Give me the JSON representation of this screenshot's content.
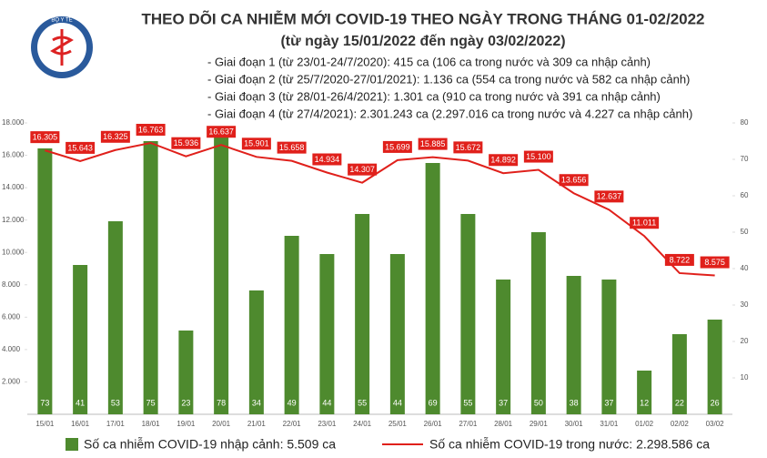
{
  "logo_text": "BỘ Y TẾ",
  "chart_data": {
    "type": "bar-line",
    "title": "THEO DÕI CA NHIỄM MỚI COVID-19 THEO NGÀY TRONG THÁNG 01-02/2022",
    "subtitle": "(từ ngày 15/01/2022 đến ngày 03/02/2022)",
    "annotations": [
      "- Giai đoạn 1 (từ 23/01-24/7/2020): 415 ca (106 ca trong nước và 309 ca nhập cảnh)",
      "- Giai đoạn 2 (từ 25/7/2020-27/01/2021): 1.136 ca (554 ca trong nước và 582 ca nhập cảnh)",
      "- Giai đoạn 3 (từ 28/01-26/4/2021): 1.301 ca (910 ca trong nước và 391 ca nhập cảnh)",
      "- Giai đoạn 4 (từ 27/4/2021): 2.301.243 ca (2.297.016 ca trong nước và 4.227 ca nhập cảnh)"
    ],
    "categories": [
      "15/01",
      "16/01",
      "17/01",
      "18/01",
      "19/01",
      "20/01",
      "21/01",
      "22/01",
      "23/01",
      "24/01",
      "25/01",
      "26/01",
      "27/01",
      "28/01",
      "29/01",
      "30/01",
      "31/01",
      "01/02",
      "02/02",
      "03/02"
    ],
    "series": [
      {
        "name": "Số ca nhiễm COVID-19 nhập cảnh: 5.509 ca",
        "kind": "bar",
        "axis": "y2",
        "color": "#4e8a2e",
        "values": [
          73,
          41,
          53,
          75,
          23,
          78,
          34,
          49,
          44,
          55,
          44,
          69,
          55,
          37,
          50,
          38,
          37,
          12,
          22,
          26
        ]
      },
      {
        "name": "Số ca nhiễm COVID-19 trong nước: 2.298.586 ca",
        "kind": "line",
        "color": "#e0201b",
        "values": [
          16305,
          15643,
          16325,
          16763,
          15936,
          16637,
          15901,
          15658,
          14934,
          14307,
          15699,
          15885,
          15672,
          14892,
          15100,
          13656,
          12637,
          11011,
          8722,
          8575
        ],
        "value_labels": [
          "16.305",
          "15.643",
          "16.325",
          "16.763",
          "15.936",
          "16.637",
          "15.901",
          "15.658",
          "14.934",
          "14.307",
          "15.699",
          "15.885",
          "15.672",
          "14.892",
          "15.100",
          "13.656",
          "12.637",
          "11.011",
          "8.722",
          "8.575"
        ]
      }
    ],
    "ylim": [
      0,
      18000
    ],
    "yticks": [
      {
        "value": 2000,
        "label": "2.000"
      },
      {
        "value": 4000,
        "label": "4.000"
      },
      {
        "value": 6000,
        "label": "6.000"
      },
      {
        "value": 8000,
        "label": "8.000"
      },
      {
        "value": 10000,
        "label": "10.000"
      },
      {
        "value": 12000,
        "label": "12.000"
      },
      {
        "value": 14000,
        "label": "14.000"
      },
      {
        "value": 16000,
        "label": "16.000"
      },
      {
        "value": 18000,
        "label": "18.000"
      }
    ],
    "y2lim": [
      0,
      80
    ],
    "y2ticks": [
      10,
      20,
      30,
      40,
      50,
      60,
      70,
      80
    ]
  }
}
